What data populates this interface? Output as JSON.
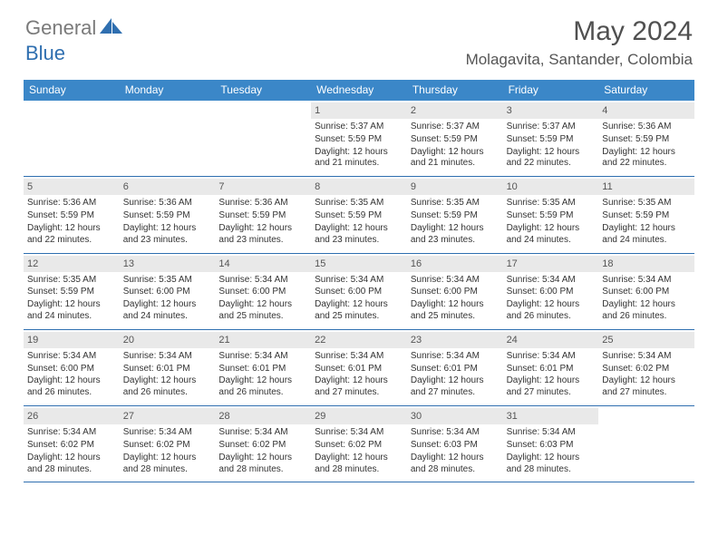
{
  "logo": {
    "part1": "General",
    "part2": "Blue"
  },
  "title": "May 2024",
  "location": "Molagavita, Santander, Colombia",
  "colors": {
    "header_bg": "#3b87c8",
    "rule": "#2f6fb0",
    "daynum_bg": "#e9e9e9",
    "logo_gray": "#7a7a7a",
    "logo_blue": "#2f6fb0"
  },
  "calendar": {
    "day_names": [
      "Sunday",
      "Monday",
      "Tuesday",
      "Wednesday",
      "Thursday",
      "Friday",
      "Saturday"
    ],
    "weeks": [
      [
        {
          "n": "",
          "sr": "",
          "ss": "",
          "dl": "",
          "empty": true
        },
        {
          "n": "",
          "sr": "",
          "ss": "",
          "dl": "",
          "empty": true
        },
        {
          "n": "",
          "sr": "",
          "ss": "",
          "dl": "",
          "empty": true
        },
        {
          "n": "1",
          "sr": "Sunrise: 5:37 AM",
          "ss": "Sunset: 5:59 PM",
          "dl": "Daylight: 12 hours and 21 minutes."
        },
        {
          "n": "2",
          "sr": "Sunrise: 5:37 AM",
          "ss": "Sunset: 5:59 PM",
          "dl": "Daylight: 12 hours and 21 minutes."
        },
        {
          "n": "3",
          "sr": "Sunrise: 5:37 AM",
          "ss": "Sunset: 5:59 PM",
          "dl": "Daylight: 12 hours and 22 minutes."
        },
        {
          "n": "4",
          "sr": "Sunrise: 5:36 AM",
          "ss": "Sunset: 5:59 PM",
          "dl": "Daylight: 12 hours and 22 minutes."
        }
      ],
      [
        {
          "n": "5",
          "sr": "Sunrise: 5:36 AM",
          "ss": "Sunset: 5:59 PM",
          "dl": "Daylight: 12 hours and 22 minutes."
        },
        {
          "n": "6",
          "sr": "Sunrise: 5:36 AM",
          "ss": "Sunset: 5:59 PM",
          "dl": "Daylight: 12 hours and 23 minutes."
        },
        {
          "n": "7",
          "sr": "Sunrise: 5:36 AM",
          "ss": "Sunset: 5:59 PM",
          "dl": "Daylight: 12 hours and 23 minutes."
        },
        {
          "n": "8",
          "sr": "Sunrise: 5:35 AM",
          "ss": "Sunset: 5:59 PM",
          "dl": "Daylight: 12 hours and 23 minutes."
        },
        {
          "n": "9",
          "sr": "Sunrise: 5:35 AM",
          "ss": "Sunset: 5:59 PM",
          "dl": "Daylight: 12 hours and 23 minutes."
        },
        {
          "n": "10",
          "sr": "Sunrise: 5:35 AM",
          "ss": "Sunset: 5:59 PM",
          "dl": "Daylight: 12 hours and 24 minutes."
        },
        {
          "n": "11",
          "sr": "Sunrise: 5:35 AM",
          "ss": "Sunset: 5:59 PM",
          "dl": "Daylight: 12 hours and 24 minutes."
        }
      ],
      [
        {
          "n": "12",
          "sr": "Sunrise: 5:35 AM",
          "ss": "Sunset: 5:59 PM",
          "dl": "Daylight: 12 hours and 24 minutes."
        },
        {
          "n": "13",
          "sr": "Sunrise: 5:35 AM",
          "ss": "Sunset: 6:00 PM",
          "dl": "Daylight: 12 hours and 24 minutes."
        },
        {
          "n": "14",
          "sr": "Sunrise: 5:34 AM",
          "ss": "Sunset: 6:00 PM",
          "dl": "Daylight: 12 hours and 25 minutes."
        },
        {
          "n": "15",
          "sr": "Sunrise: 5:34 AM",
          "ss": "Sunset: 6:00 PM",
          "dl": "Daylight: 12 hours and 25 minutes."
        },
        {
          "n": "16",
          "sr": "Sunrise: 5:34 AM",
          "ss": "Sunset: 6:00 PM",
          "dl": "Daylight: 12 hours and 25 minutes."
        },
        {
          "n": "17",
          "sr": "Sunrise: 5:34 AM",
          "ss": "Sunset: 6:00 PM",
          "dl": "Daylight: 12 hours and 26 minutes."
        },
        {
          "n": "18",
          "sr": "Sunrise: 5:34 AM",
          "ss": "Sunset: 6:00 PM",
          "dl": "Daylight: 12 hours and 26 minutes."
        }
      ],
      [
        {
          "n": "19",
          "sr": "Sunrise: 5:34 AM",
          "ss": "Sunset: 6:00 PM",
          "dl": "Daylight: 12 hours and 26 minutes."
        },
        {
          "n": "20",
          "sr": "Sunrise: 5:34 AM",
          "ss": "Sunset: 6:01 PM",
          "dl": "Daylight: 12 hours and 26 minutes."
        },
        {
          "n": "21",
          "sr": "Sunrise: 5:34 AM",
          "ss": "Sunset: 6:01 PM",
          "dl": "Daylight: 12 hours and 26 minutes."
        },
        {
          "n": "22",
          "sr": "Sunrise: 5:34 AM",
          "ss": "Sunset: 6:01 PM",
          "dl": "Daylight: 12 hours and 27 minutes."
        },
        {
          "n": "23",
          "sr": "Sunrise: 5:34 AM",
          "ss": "Sunset: 6:01 PM",
          "dl": "Daylight: 12 hours and 27 minutes."
        },
        {
          "n": "24",
          "sr": "Sunrise: 5:34 AM",
          "ss": "Sunset: 6:01 PM",
          "dl": "Daylight: 12 hours and 27 minutes."
        },
        {
          "n": "25",
          "sr": "Sunrise: 5:34 AM",
          "ss": "Sunset: 6:02 PM",
          "dl": "Daylight: 12 hours and 27 minutes."
        }
      ],
      [
        {
          "n": "26",
          "sr": "Sunrise: 5:34 AM",
          "ss": "Sunset: 6:02 PM",
          "dl": "Daylight: 12 hours and 28 minutes."
        },
        {
          "n": "27",
          "sr": "Sunrise: 5:34 AM",
          "ss": "Sunset: 6:02 PM",
          "dl": "Daylight: 12 hours and 28 minutes."
        },
        {
          "n": "28",
          "sr": "Sunrise: 5:34 AM",
          "ss": "Sunset: 6:02 PM",
          "dl": "Daylight: 12 hours and 28 minutes."
        },
        {
          "n": "29",
          "sr": "Sunrise: 5:34 AM",
          "ss": "Sunset: 6:02 PM",
          "dl": "Daylight: 12 hours and 28 minutes."
        },
        {
          "n": "30",
          "sr": "Sunrise: 5:34 AM",
          "ss": "Sunset: 6:03 PM",
          "dl": "Daylight: 12 hours and 28 minutes."
        },
        {
          "n": "31",
          "sr": "Sunrise: 5:34 AM",
          "ss": "Sunset: 6:03 PM",
          "dl": "Daylight: 12 hours and 28 minutes."
        },
        {
          "n": "",
          "sr": "",
          "ss": "",
          "dl": "",
          "empty": true
        }
      ]
    ]
  }
}
